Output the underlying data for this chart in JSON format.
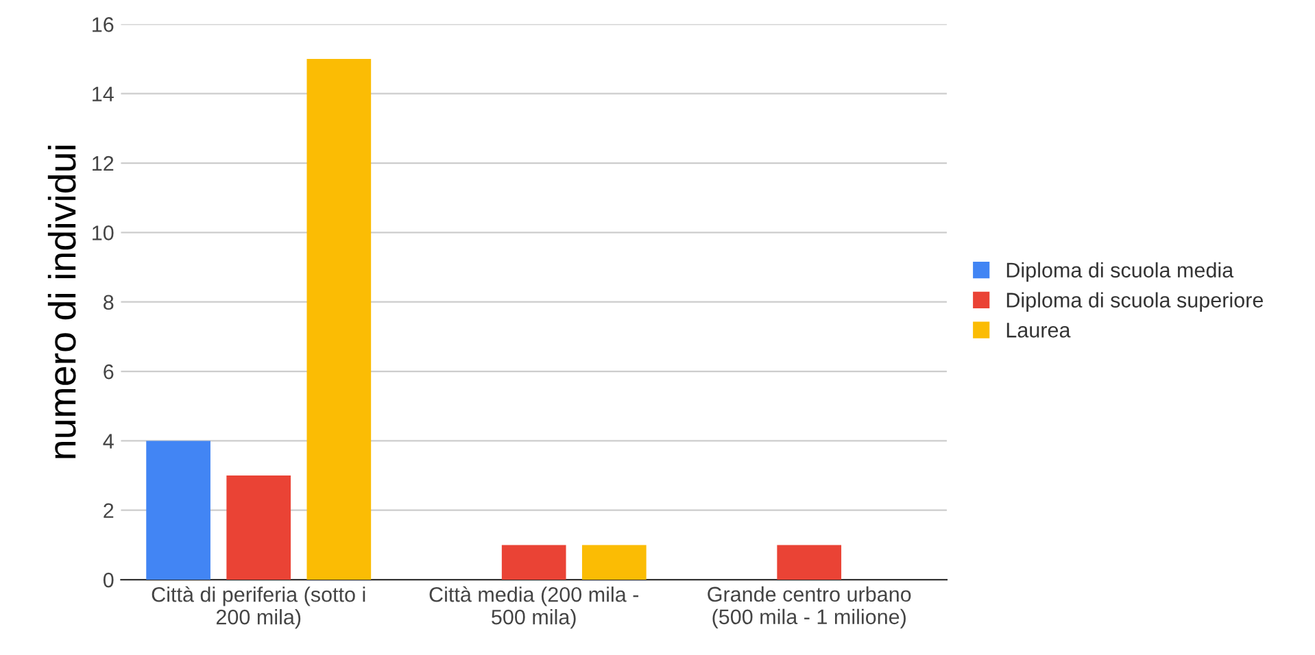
{
  "chart_data": {
    "type": "bar",
    "ylabel": "numero di individui",
    "categories": [
      "Città di periferia (sotto i\n200 mila)",
      "Città media (200 mila -\n500 mila)",
      "Grande centro urbano\n(500 mila - 1 milione)"
    ],
    "series": [
      {
        "name": "Diploma di scuola media",
        "color": "#4285f4",
        "values": [
          4,
          0,
          0
        ]
      },
      {
        "name": "Diploma di scuola superiore",
        "color": "#ea4335",
        "values": [
          3,
          1,
          1
        ]
      },
      {
        "name": "Laurea",
        "color": "#fbbc04",
        "values": [
          15,
          1,
          0
        ]
      }
    ],
    "ylim": [
      0,
      16
    ],
    "yticks": [
      0,
      2,
      4,
      6,
      8,
      10,
      12,
      14,
      16
    ],
    "grid": "y",
    "legend": "right"
  }
}
